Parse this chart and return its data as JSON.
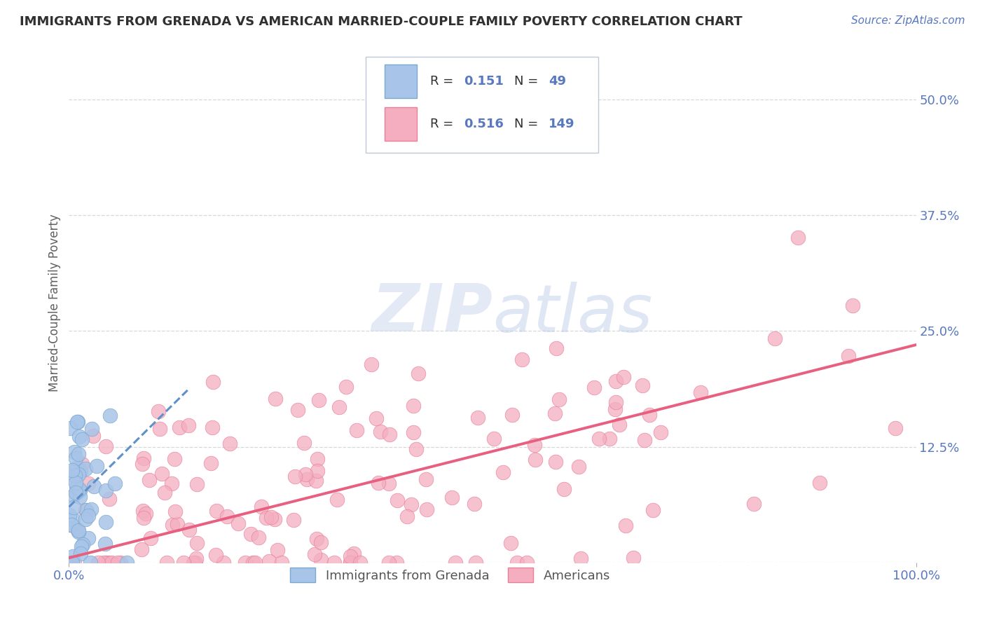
{
  "title": "IMMIGRANTS FROM GRENADA VS AMERICAN MARRIED-COUPLE FAMILY POVERTY CORRELATION CHART",
  "source_text": "Source: ZipAtlas.com",
  "ylabel": "Married-Couple Family Poverty",
  "legend_labels": [
    "Immigrants from Grenada",
    "Americans"
  ],
  "R_blue": 0.151,
  "N_blue": 49,
  "R_pink": 0.516,
  "N_pink": 149,
  "blue_color": "#a8c4e8",
  "pink_color": "#f4aec0",
  "blue_edge_color": "#7aaad0",
  "pink_edge_color": "#e8809a",
  "blue_line_color": "#6090c8",
  "pink_line_color": "#e86080",
  "watermark_color": "#ccd8ee",
  "xmin": 0.0,
  "xmax": 1.0,
  "ymin": 0.0,
  "ymax": 0.56,
  "yticks": [
    0.0,
    0.125,
    0.25,
    0.375,
    0.5
  ],
  "ytick_labels": [
    "",
    "12.5%",
    "25.0%",
    "37.5%",
    "50.0%"
  ],
  "xtick_labels": [
    "0.0%",
    "100.0%"
  ],
  "background_color": "#ffffff",
  "grid_color": "#d8d8d8",
  "title_color": "#303030",
  "axis_tick_color": "#5878c0",
  "ylabel_color": "#606060",
  "seed": 7
}
